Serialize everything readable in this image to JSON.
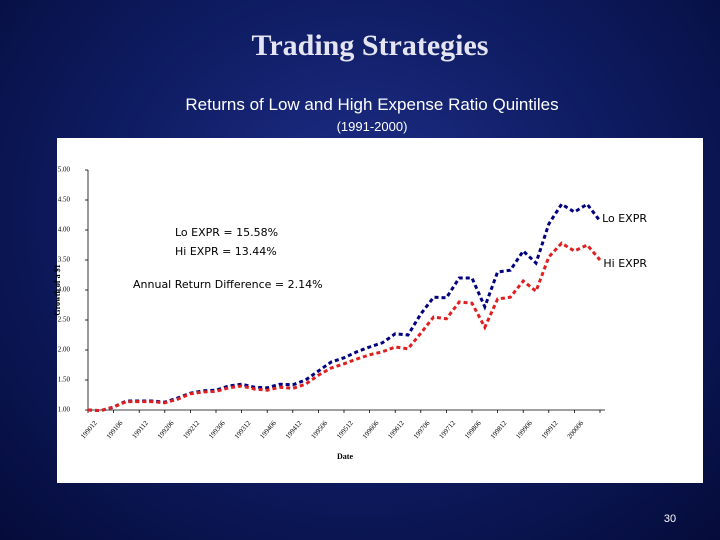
{
  "slide": {
    "title": "Trading Strategies",
    "subtitle": "Returns of Low and High Expense Ratio Quintiles",
    "period": "(1991-2000)",
    "page_number": "30"
  },
  "chart_data": {
    "type": "line",
    "x_label": "Date",
    "y_label": "Growth of a $1",
    "categories": [
      "199012",
      null,
      "199106",
      null,
      "199112",
      null,
      "199206",
      null,
      "199212",
      null,
      "199306",
      null,
      "199312",
      null,
      "199406",
      null,
      "199412",
      null,
      "199506",
      null,
      "199512",
      null,
      "199606",
      null,
      "199612",
      null,
      "199706",
      null,
      "199712",
      null,
      "199806",
      null,
      "199812",
      null,
      "199906",
      null,
      "199912",
      null,
      "200006",
      null,
      null
    ],
    "series": [
      {
        "name": "Lo EXPR",
        "color": "#000080",
        "values": [
          1.0,
          0.99,
          1.05,
          1.15,
          1.15,
          1.15,
          1.13,
          1.2,
          1.28,
          1.32,
          1.33,
          1.4,
          1.43,
          1.38,
          1.37,
          1.43,
          1.42,
          1.5,
          1.65,
          1.8,
          1.87,
          1.97,
          2.05,
          2.12,
          2.27,
          2.25,
          2.6,
          2.88,
          2.87,
          3.2,
          3.2,
          2.72,
          3.3,
          3.33,
          3.65,
          3.45,
          4.1,
          4.43,
          4.3,
          4.43,
          4.15
        ]
      },
      {
        "name": "Hi EXPR",
        "color": "#e02020",
        "values": [
          1.0,
          0.99,
          1.05,
          1.14,
          1.14,
          1.14,
          1.12,
          1.18,
          1.27,
          1.3,
          1.31,
          1.37,
          1.4,
          1.35,
          1.33,
          1.38,
          1.36,
          1.43,
          1.58,
          1.7,
          1.77,
          1.85,
          1.92,
          1.97,
          2.05,
          2.02,
          2.28,
          2.55,
          2.52,
          2.8,
          2.78,
          2.38,
          2.85,
          2.88,
          3.15,
          2.98,
          3.55,
          3.78,
          3.65,
          3.75,
          3.5
        ]
      }
    ],
    "ylim": [
      1,
      5
    ],
    "yticks": [
      {
        "value": 1,
        "label": "1.00"
      },
      {
        "value": 1.5,
        "label": "1.50"
      },
      {
        "value": 2,
        "label": "2.00"
      },
      {
        "value": 2.5,
        "label": "2.50"
      },
      {
        "value": 3,
        "label": "3.00"
      },
      {
        "value": 3.5,
        "label": "3.50"
      },
      {
        "value": 4,
        "label": "4.00"
      },
      {
        "value": 4.5,
        "label": "4.50"
      },
      {
        "value": 5,
        "label": "5.00"
      }
    ],
    "annotations": [
      "Lo EXPR = 15.58%",
      "Hi EXPR = 13.44%",
      "Annual Return Difference = 2.14%"
    ],
    "grid": false
  }
}
